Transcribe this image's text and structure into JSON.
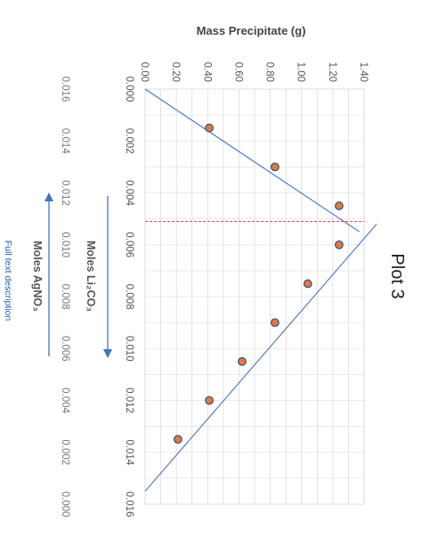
{
  "chart_data": {
    "type": "scatter",
    "title": "Plot 3",
    "ylabel": "Mass Precipitate (g)",
    "ylim": [
      0,
      1.4
    ],
    "y_ticks": [
      "0.00",
      "0.20",
      "0.40",
      "0.60",
      "0.80",
      "1.00",
      "1.20",
      "1.40"
    ],
    "xlim": [
      0,
      0.016
    ],
    "x_ticks": [
      "0.000",
      "0.002",
      "0.004",
      "0.006",
      "0.008",
      "0.010",
      "0.012",
      "0.014",
      "0.016"
    ],
    "secondary_x_ticks": [
      "0.016",
      "0.014",
      "0.012",
      "0.010",
      "0.008",
      "0.006",
      "0.004",
      "0.002",
      "0.000"
    ],
    "xlabel_primary": "Moles Li₂CO₃",
    "xlabel_secondary": "Moles AgNO₃",
    "grid": true,
    "points": [
      {
        "x": 0.0015,
        "y": 0.41
      },
      {
        "x": 0.003,
        "y": 0.83
      },
      {
        "x": 0.0045,
        "y": 1.24
      },
      {
        "x": 0.006,
        "y": 1.24
      },
      {
        "x": 0.0075,
        "y": 1.04
      },
      {
        "x": 0.009,
        "y": 0.83
      },
      {
        "x": 0.0105,
        "y": 0.62
      },
      {
        "x": 0.012,
        "y": 0.41
      },
      {
        "x": 0.0135,
        "y": 0.21
      }
    ],
    "trendlines": [
      {
        "x": [
          0.0,
          0.0055
        ],
        "y": [
          0.0,
          1.37
        ]
      },
      {
        "x": [
          0.0052,
          0.0155
        ],
        "y": [
          1.48,
          0.0
        ]
      }
    ],
    "intersection_x": 0.0051,
    "colors": {
      "marker_fill": "#e8783a",
      "marker_stroke": "#2f4f8f",
      "trendline": "#4472c4",
      "intersection": "#e03030",
      "arrow": "#4472c4"
    }
  },
  "footer": {
    "link_text": "Full text description"
  }
}
